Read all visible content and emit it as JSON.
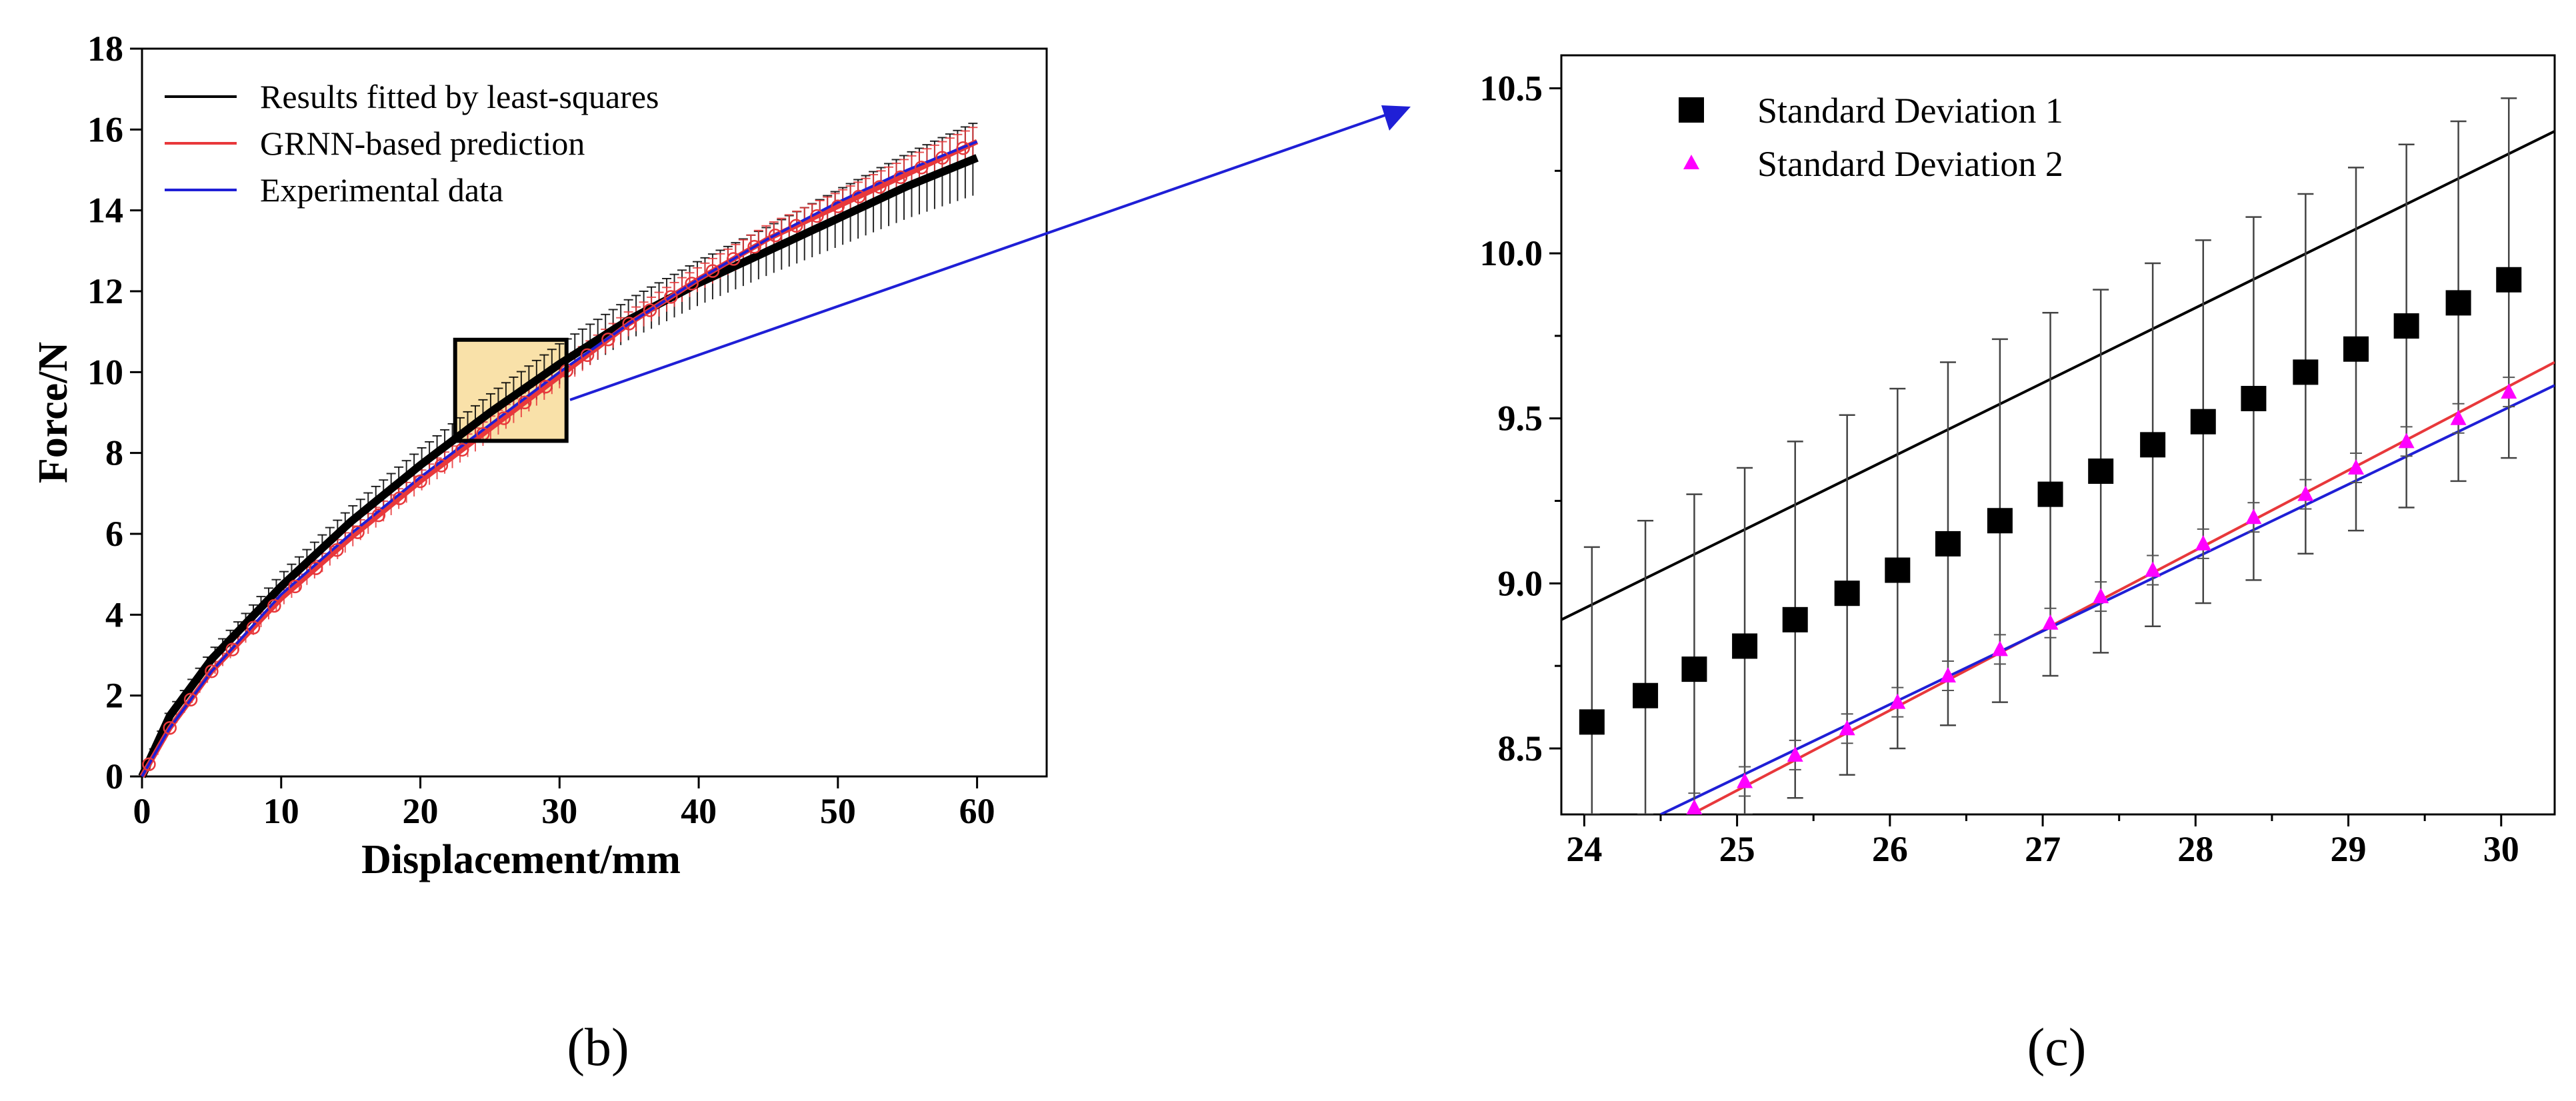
{
  "chart_data": [
    {
      "panel": "(b)",
      "type": "line",
      "xlabel": "Displacement/mm",
      "ylabel": "Force/N",
      "xlim": [
        0,
        65
      ],
      "ylim": [
        0,
        18
      ],
      "xticks": [
        "0",
        "10",
        "20",
        "30",
        "40",
        "50",
        "60"
      ],
      "yticks": [
        "0",
        "2",
        "4",
        "6",
        "8",
        "10",
        "12",
        "14",
        "16",
        "18"
      ],
      "legend": [
        {
          "label": "Results fitted by least-squares",
          "color": "#000000"
        },
        {
          "label": "GRNN-based prediction",
          "color": "#e8383b"
        },
        {
          "label": "Experimental data",
          "color": "#1f1fd6"
        }
      ],
      "series": [
        {
          "name": "Results fitted by least-squares",
          "color": "#000000",
          "x": [
            0,
            2,
            5,
            10,
            15,
            20,
            25,
            30,
            35,
            40,
            45,
            50,
            55,
            60
          ],
          "y": [
            0,
            1.5,
            2.9,
            4.7,
            6.3,
            7.7,
            9.0,
            10.2,
            11.3,
            12.2,
            13.0,
            13.8,
            14.6,
            15.3
          ],
          "err": [
            0,
            0.1,
            0.2,
            0.3,
            0.35,
            0.4,
            0.45,
            0.5,
            0.5,
            0.55,
            0.6,
            0.7,
            0.8,
            0.9
          ]
        },
        {
          "name": "GRNN-based prediction",
          "color": "#e8383b",
          "x": [
            0,
            2,
            5,
            10,
            15,
            20,
            25,
            30,
            35,
            40,
            45,
            50,
            55,
            60
          ],
          "y": [
            0,
            1.2,
            2.6,
            4.4,
            5.9,
            7.3,
            8.6,
            9.9,
            11.2,
            12.3,
            13.3,
            14.1,
            14.9,
            15.7
          ],
          "err": [
            0,
            0.1,
            0.15,
            0.2,
            0.25,
            0.25,
            0.3,
            0.3,
            0.3,
            0.3,
            0.35,
            0.35,
            0.4,
            0.4
          ]
        },
        {
          "name": "Experimental data",
          "color": "#1f1fd6",
          "x": [
            0,
            2,
            5,
            10,
            15,
            20,
            25,
            30,
            35,
            40,
            45,
            50,
            55,
            60
          ],
          "y": [
            0,
            1.2,
            2.6,
            4.5,
            6.0,
            7.4,
            8.7,
            10.0,
            11.2,
            12.3,
            13.3,
            14.2,
            15.0,
            15.7
          ]
        }
      ],
      "zoom_box": {
        "x": [
          22.5,
          30.5
        ],
        "y": [
          8.3,
          10.8
        ]
      }
    },
    {
      "panel": "(c)",
      "type": "scatter",
      "xlim": [
        23.85,
        30.35
      ],
      "ylim": [
        8.3,
        10.6
      ],
      "xticks": [
        "24",
        "25",
        "26",
        "27",
        "28",
        "29",
        "30"
      ],
      "yticks": [
        "8.5",
        "9.0",
        "9.5",
        "10.0",
        "10.5"
      ],
      "legend": [
        {
          "label": "Standard Deviation 1",
          "marker": "square",
          "color": "#000000"
        },
        {
          "label": "Standard Deviation 2",
          "marker": "triangle",
          "color": "#ff00ff"
        }
      ],
      "series": [
        {
          "name": "Standard Deviation 1",
          "marker": "square",
          "color": "#000000",
          "x": [
            24.05,
            24.4,
            24.72,
            25.05,
            25.38,
            25.72,
            26.05,
            26.38,
            26.72,
            27.05,
            27.38,
            27.72,
            28.05,
            28.38,
            28.72,
            29.05,
            29.38,
            29.72,
            30.05
          ],
          "y": [
            8.58,
            8.66,
            8.74,
            8.81,
            8.89,
            8.97,
            9.04,
            9.12,
            9.19,
            9.27,
            9.34,
            9.42,
            9.49,
            9.56,
            9.64,
            9.71,
            9.78,
            9.85,
            9.92
          ],
          "err_up": [
            9.11,
            9.19,
            9.27,
            9.35,
            9.43,
            9.51,
            9.59,
            9.67,
            9.74,
            9.82,
            9.89,
            9.97,
            10.04,
            10.11,
            10.18,
            10.26,
            10.33,
            10.4,
            10.47
          ],
          "err_low": [
            8.3,
            8.3,
            8.3,
            8.3,
            8.35,
            8.42,
            8.5,
            8.57,
            8.64,
            8.72,
            8.79,
            8.87,
            8.94,
            9.01,
            9.09,
            9.16,
            9.23,
            9.31,
            9.38
          ]
        },
        {
          "name": "Standard Deviation 2",
          "marker": "triangle",
          "color": "#ff00ff",
          "x": [
            24.72,
            25.05,
            25.38,
            25.72,
            26.05,
            26.38,
            26.72,
            27.05,
            27.38,
            27.72,
            28.05,
            28.38,
            28.72,
            29.05,
            29.38,
            29.72,
            30.05
          ],
          "y": [
            8.32,
            8.4,
            8.48,
            8.56,
            8.64,
            8.72,
            8.8,
            8.88,
            8.96,
            9.04,
            9.12,
            9.2,
            9.27,
            9.35,
            9.43,
            9.5,
            9.58
          ]
        },
        {
          "name": "black line",
          "color": "#000000",
          "x": [
            23.85,
            30.35
          ],
          "y": [
            8.89,
            10.37
          ]
        },
        {
          "name": "red line",
          "color": "#e8383b",
          "x": [
            24.7,
            30.35
          ],
          "y": [
            8.3,
            9.67
          ]
        },
        {
          "name": "blue line",
          "color": "#1f1fd6",
          "x": [
            24.5,
            30.35
          ],
          "y": [
            8.3,
            9.6
          ]
        }
      ]
    }
  ]
}
